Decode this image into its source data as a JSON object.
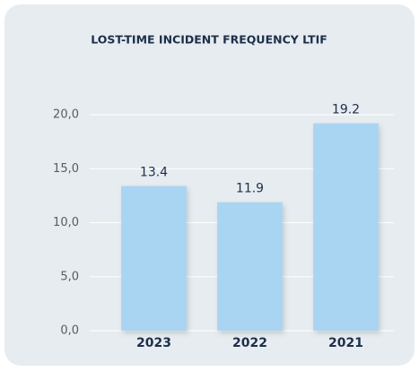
{
  "chart_data": {
    "type": "bar",
    "title": "LOST-TIME INCIDENT FREQUENCY LTIF",
    "categories": [
      "2023",
      "2022",
      "2021"
    ],
    "values": [
      13.4,
      11.9,
      19.2
    ],
    "color": "#a9d5f3",
    "ylim": [
      0,
      20
    ],
    "yticks": [
      {
        "value": 0,
        "label": "0,0"
      },
      {
        "value": 5,
        "label": "5,0"
      },
      {
        "value": 10,
        "label": "10,0"
      },
      {
        "value": 15,
        "label": "15,0"
      },
      {
        "value": 20,
        "label": "20,0"
      }
    ],
    "grid": true
  }
}
